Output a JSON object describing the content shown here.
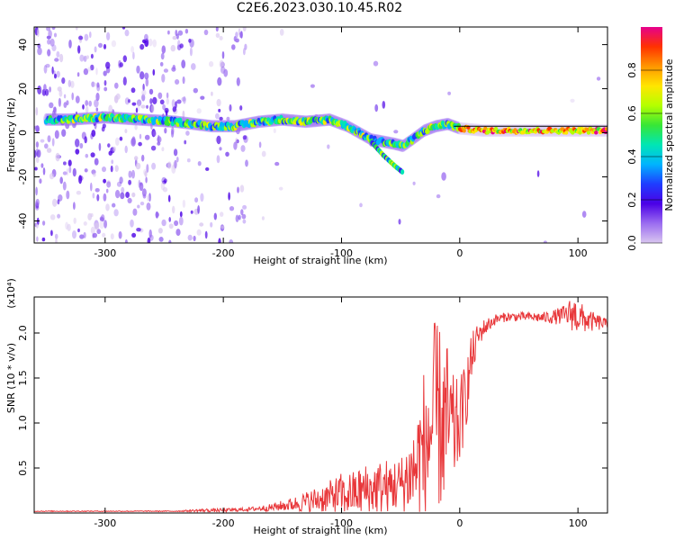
{
  "chart_data": [
    {
      "type": "heatmap",
      "title": "C2E6.2023.030.10.45.R02",
      "xlabel": "Height of straight line (km)",
      "ylabel": "Frequency (Hz)",
      "xlim": [
        -360,
        125
      ],
      "ylim": [
        -50,
        48
      ],
      "x_ticks": [
        -300,
        -200,
        -100,
        0,
        100
      ],
      "y_ticks": [
        -40,
        -20,
        0,
        20,
        40
      ],
      "colorbar": {
        "label": "Normalized spectral amplitude",
        "range": [
          0.0,
          1.0
        ],
        "ticks": [
          0.0,
          0.2,
          0.4,
          0.6,
          0.8
        ],
        "colors": [
          "#d9c6f0",
          "#9b6cf0",
          "#4b00e6",
          "#1f3dff",
          "#00b4ff",
          "#00e6b4",
          "#37e637",
          "#b4ff00",
          "#ffe600",
          "#ff9600",
          "#ff3200",
          "#e6008c"
        ]
      },
      "ridge": {
        "x": [
          -350,
          -330,
          -300,
          -270,
          -240,
          -210,
          -190,
          -170,
          -150,
          -130,
          -110,
          -95,
          -85,
          -75,
          -65,
          -55,
          -48,
          -40,
          -30,
          -20,
          -10,
          0,
          20,
          40,
          60,
          80,
          100,
          125
        ],
        "y": [
          6,
          6,
          7,
          6,
          5,
          3,
          3,
          5,
          6,
          5,
          6,
          3,
          0,
          -3,
          -4,
          -5,
          -6,
          -3,
          1,
          3,
          4,
          2,
          1,
          1,
          1,
          1,
          1,
          1
        ]
      },
      "branch": {
        "x": [
          -75,
          -65,
          -55,
          -48
        ],
        "y": [
          -4,
          -10,
          -15,
          -18
        ]
      }
    },
    {
      "type": "line",
      "xlabel": "Height of straight line (km)",
      "ylabel": "SNR (10 * v/v)",
      "scale_label": "(x10⁴)",
      "xlim": [
        -360,
        125
      ],
      "ylim": [
        0,
        2.4
      ],
      "x_ticks": [
        -300,
        -200,
        -100,
        0,
        100
      ],
      "y_ticks": [
        0.5,
        1.0,
        1.5,
        2.0
      ],
      "line_color": "#e8373a",
      "x": [
        -360,
        -300,
        -240,
        -215,
        -200,
        -180,
        -160,
        -150,
        -140,
        -130,
        -120,
        -110,
        -100,
        -90,
        -80,
        -70,
        -60,
        -50,
        -40,
        -35,
        -30,
        -25,
        -20,
        -15,
        -10,
        -5,
        0,
        5,
        10,
        15,
        20,
        25,
        30,
        40,
        50,
        60,
        70,
        80,
        90,
        95,
        100,
        105,
        110,
        115,
        120,
        125
      ],
      "y": [
        0.02,
        0.02,
        0.02,
        0.03,
        0.03,
        0.04,
        0.06,
        0.08,
        0.1,
        0.12,
        0.15,
        0.18,
        0.2,
        0.22,
        0.25,
        0.28,
        0.3,
        0.32,
        0.45,
        0.55,
        0.75,
        0.9,
        1.1,
        1.0,
        1.0,
        0.9,
        1.0,
        1.3,
        1.7,
        1.95,
        2.05,
        2.1,
        2.15,
        2.18,
        2.18,
        2.18,
        2.17,
        2.18,
        2.2,
        2.22,
        2.18,
        2.15,
        2.13,
        2.12,
        2.11,
        2.1
      ],
      "noise": [
        0.005,
        0.005,
        0.005,
        0.02,
        0.02,
        0.02,
        0.04,
        0.06,
        0.08,
        0.12,
        0.15,
        0.18,
        0.25,
        0.25,
        0.3,
        0.3,
        0.32,
        0.3,
        0.5,
        0.7,
        0.9,
        1.0,
        1.1,
        1.0,
        0.9,
        0.6,
        0.5,
        0.4,
        0.3,
        0.15,
        0.1,
        0.08,
        0.06,
        0.05,
        0.05,
        0.05,
        0.06,
        0.08,
        0.12,
        0.2,
        0.2,
        0.15,
        0.12,
        0.1,
        0.08,
        0.05
      ]
    }
  ]
}
